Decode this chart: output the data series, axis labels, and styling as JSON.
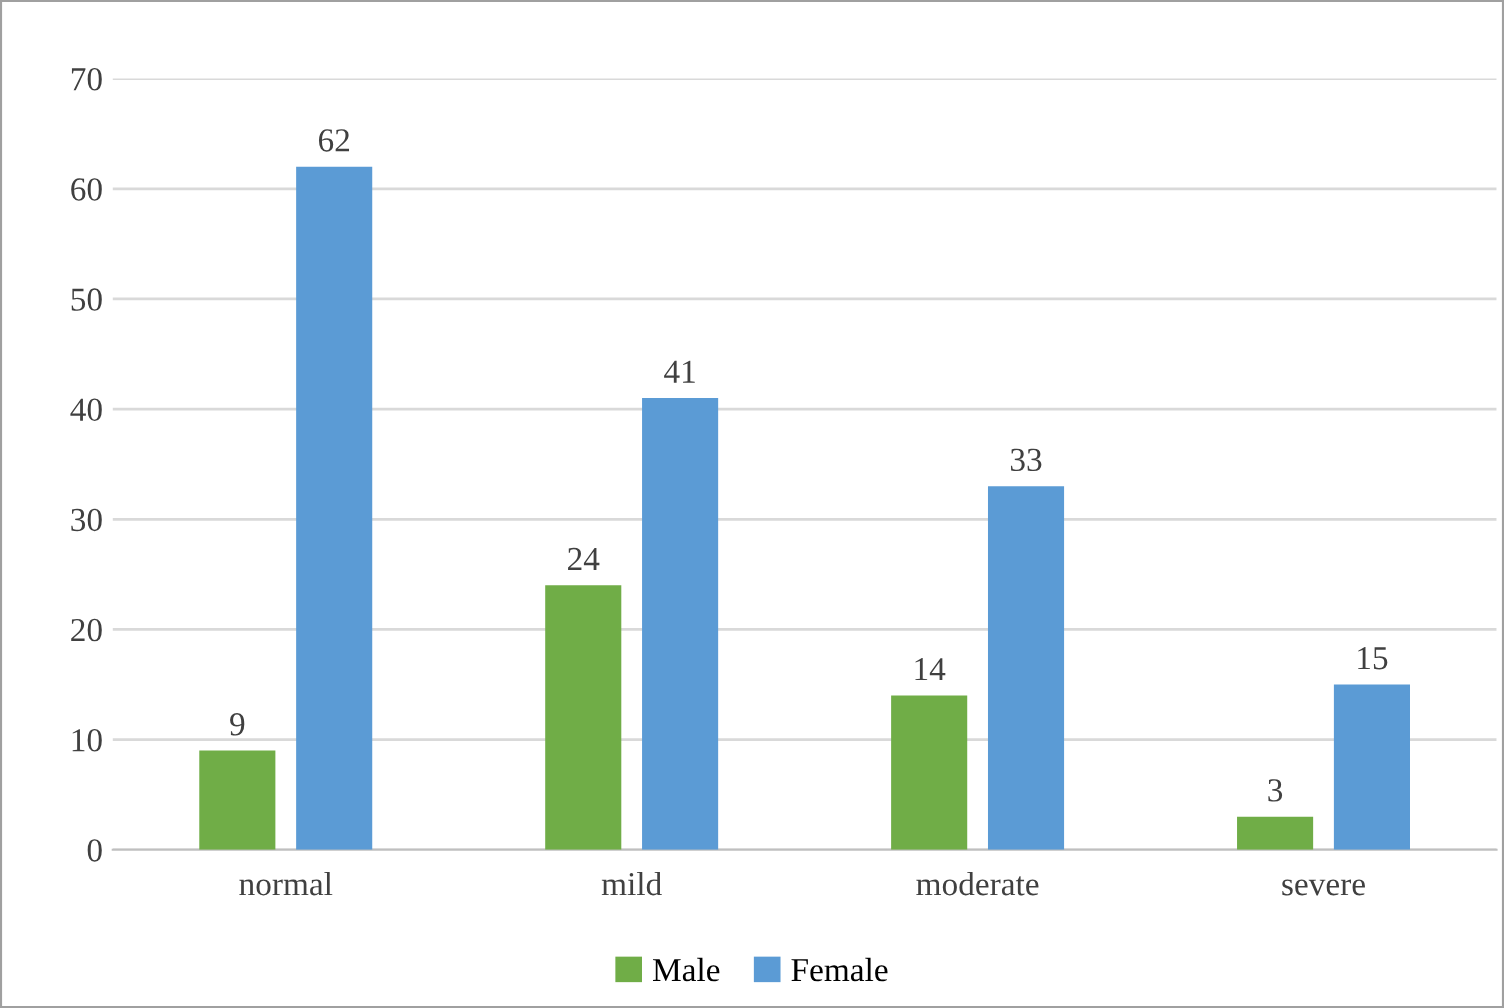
{
  "chart_data": {
    "type": "bar",
    "categories": [
      "normal",
      "mild",
      "moderate",
      "severe"
    ],
    "series": [
      {
        "name": "Male",
        "color": "#70ad47",
        "values": [
          9,
          24,
          14,
          3
        ]
      },
      {
        "name": "Female",
        "color": "#5b9bd5",
        "values": [
          62,
          41,
          33,
          15
        ]
      }
    ],
    "ylim": [
      0,
      70
    ],
    "yticks": [
      0,
      10,
      20,
      30,
      40,
      50,
      60,
      70
    ],
    "grid": "y",
    "legend": "bottom",
    "data_labels": true
  }
}
